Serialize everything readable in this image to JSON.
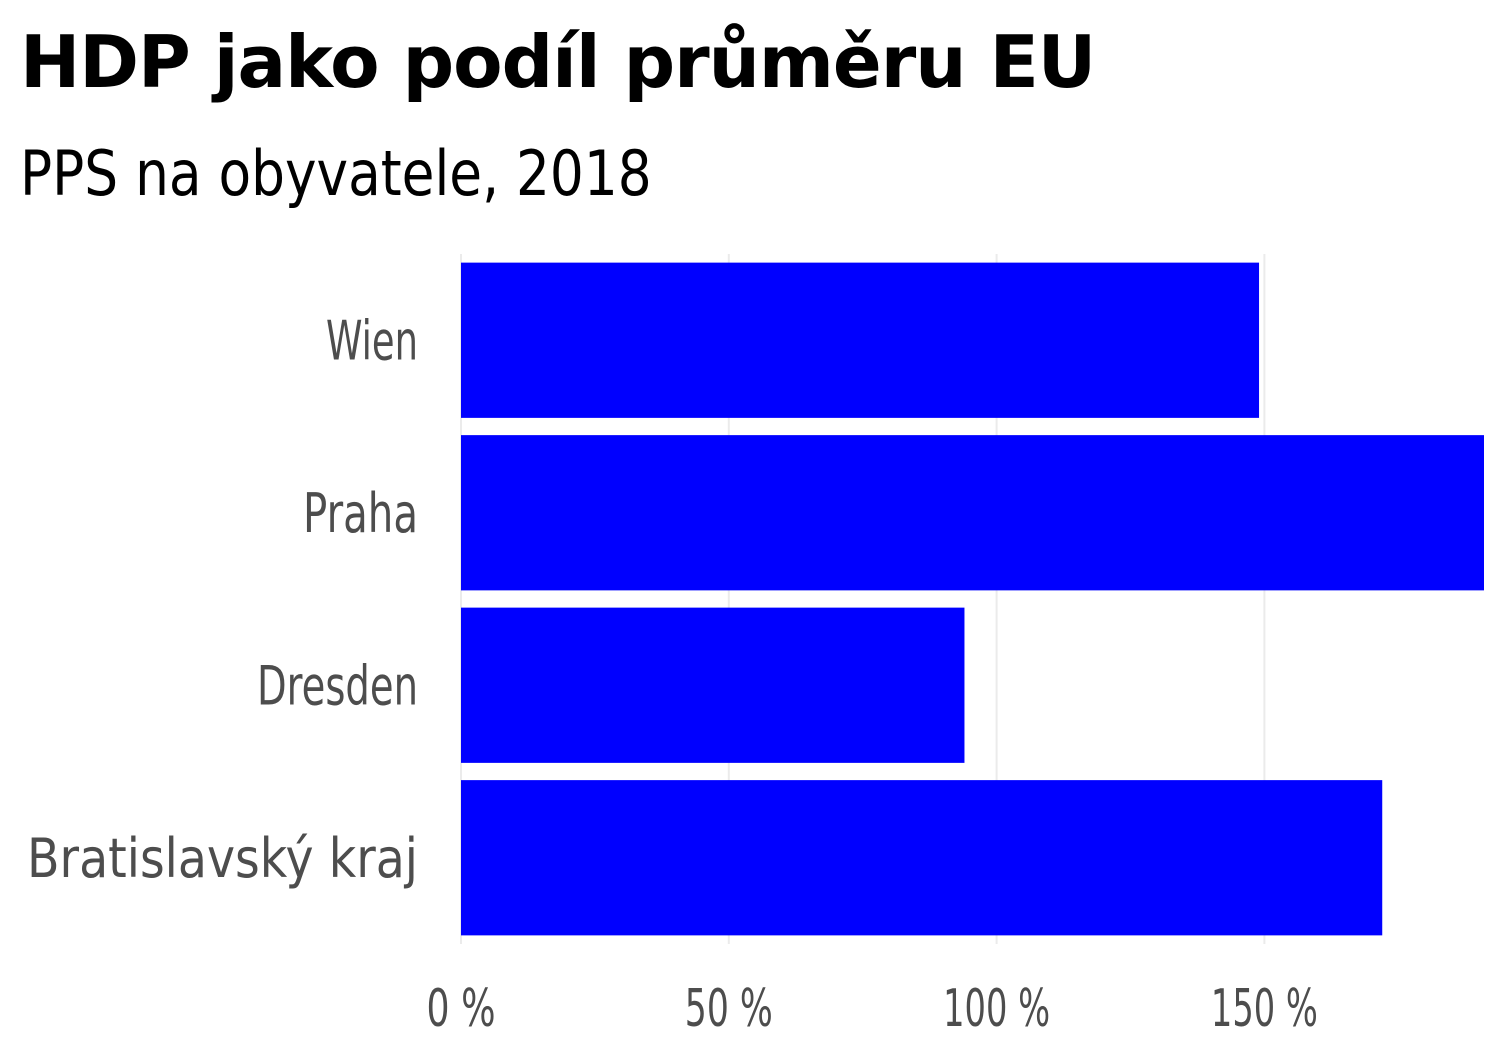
{
  "chart_data": {
    "type": "bar",
    "orientation": "horizontal",
    "title": "HDP jako podíl průměru EU",
    "subtitle": "PPS na obyvatele, 2018",
    "categories": [
      "Wien",
      "Praha",
      "Dresden",
      "Bratislavský kraj"
    ],
    "values": [
      149,
      191,
      94,
      172
    ],
    "unit": "%",
    "xlim": [
      0,
      191
    ],
    "xticks": [
      0,
      50,
      100,
      150
    ],
    "xtick_labels": [
      "0 %",
      "50 %",
      "100 %",
      "150 %"
    ],
    "xlabel": "",
    "ylabel": "",
    "grid": "vertical",
    "legend": "none",
    "bar_color": "#0000ff",
    "grid_color": "#ebebeb",
    "label_color": "#4d4d4d"
  }
}
